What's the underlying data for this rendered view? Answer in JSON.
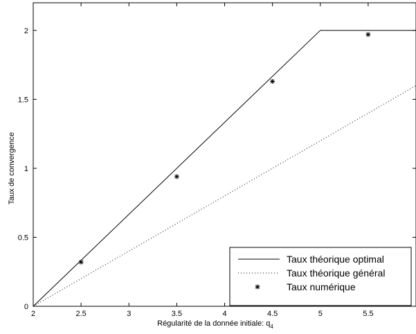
{
  "chart_data": {
    "type": "line",
    "title": "",
    "xlabel": "Régularité de la donnée initiale: q",
    "xlabel_subscript": "4",
    "ylabel": "Taux de convergence",
    "xlim": [
      2,
      6
    ],
    "ylim": [
      0,
      2.2
    ],
    "xticks": [
      2,
      2.5,
      3,
      3.5,
      4,
      4.5,
      5,
      5.5
    ],
    "xtick_labels": [
      "2",
      "2.5",
      "3",
      "3.5",
      "4",
      "4.5",
      "5",
      "5.5"
    ],
    "yticks": [
      0,
      0.5,
      1,
      1.5,
      2
    ],
    "ytick_labels": [
      "0",
      "0.5",
      "1",
      "1.5",
      "2"
    ],
    "grid": false,
    "legend_position": "bottom-right",
    "series": [
      {
        "name": "Taux théorique optimal",
        "style": "solid",
        "x": [
          2,
          5,
          6
        ],
        "y": [
          0,
          2,
          2
        ]
      },
      {
        "name": "Taux théorique général",
        "style": "dotted",
        "x": [
          2,
          6
        ],
        "y": [
          0,
          1.6
        ]
      },
      {
        "name": "Taux numérique",
        "style": "marker",
        "marker": "*",
        "x": [
          2.5,
          3.5,
          4.5,
          5.5
        ],
        "y": [
          0.32,
          0.94,
          1.63,
          1.97
        ]
      }
    ]
  }
}
